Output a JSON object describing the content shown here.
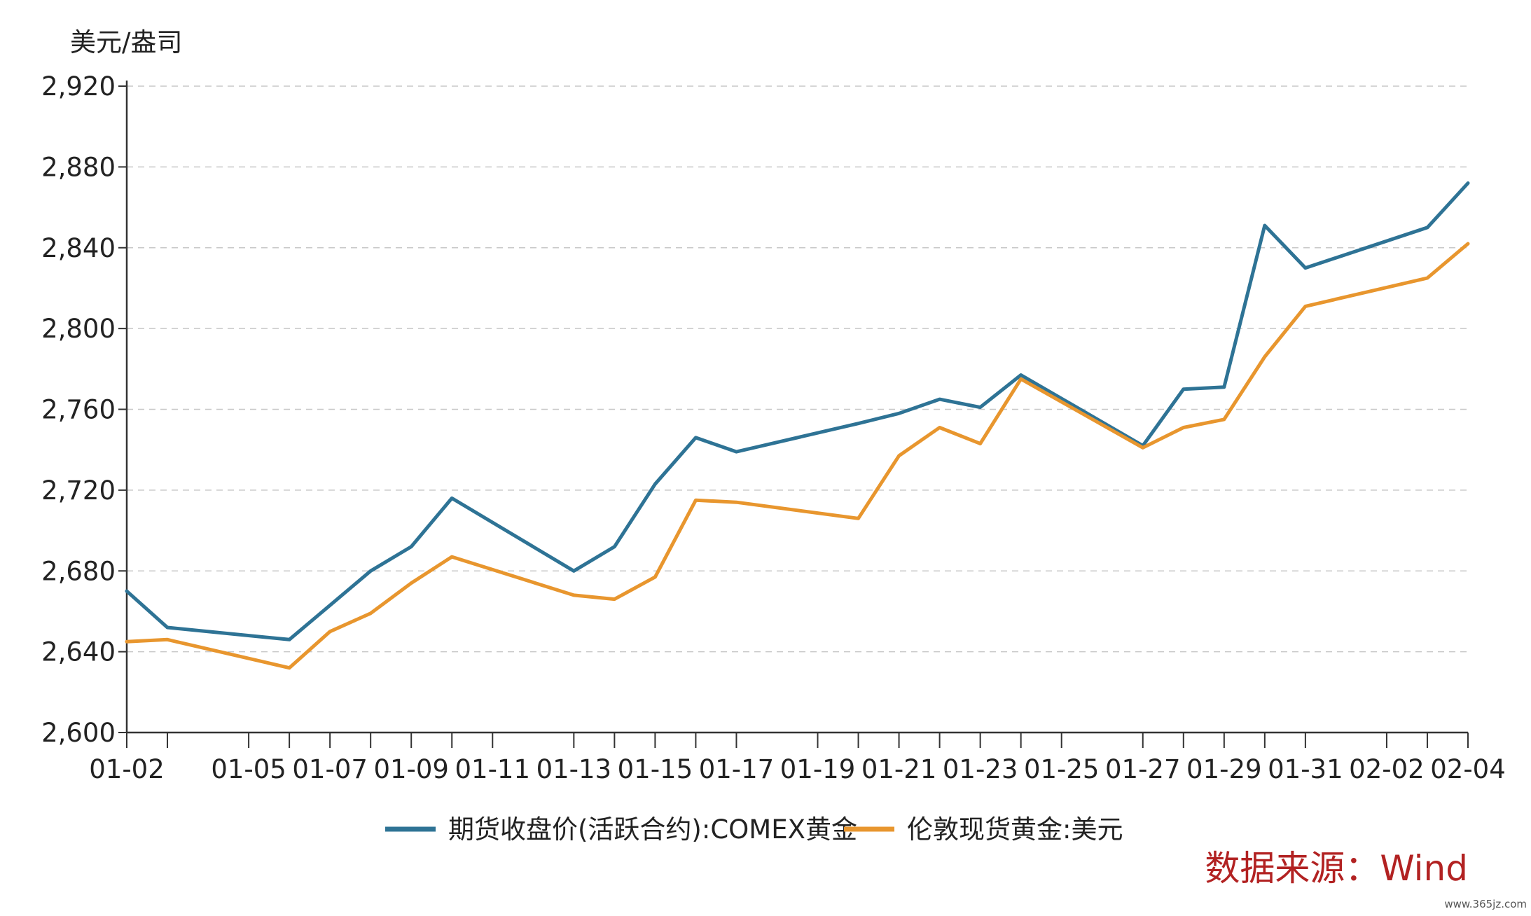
{
  "chart_data": {
    "type": "line",
    "y_unit": "美元/盎司",
    "ylim": [
      2600,
      2920
    ],
    "y_ticks": [
      2600,
      2640,
      2680,
      2720,
      2760,
      2800,
      2840,
      2880,
      2920
    ],
    "y_tick_labels": [
      "2,600",
      "2,640",
      "2,680",
      "2,720",
      "2,760",
      "2,800",
      "2,840",
      "2,880",
      "2,920"
    ],
    "x_dates": [
      "01-02",
      "01-03",
      "01-06",
      "01-07",
      "01-08",
      "01-09",
      "01-10",
      "01-13",
      "01-14",
      "01-15",
      "01-16",
      "01-17",
      "01-20",
      "01-21",
      "01-22",
      "01-23",
      "01-24",
      "01-27",
      "01-28",
      "01-29",
      "01-30",
      "01-31",
      "02-03",
      "02-04"
    ],
    "x_tick_labels": [
      "01-02",
      "01-05",
      "01-07",
      "01-09",
      "01-11",
      "01-13",
      "01-15",
      "01-17",
      "01-19",
      "01-21",
      "01-23",
      "01-25",
      "01-27",
      "01-29",
      "01-31",
      "02-02",
      "02-04"
    ],
    "grid": "horizontal dashed",
    "legend_position": "bottom",
    "series": [
      {
        "name": "期货收盘价(活跃合约):COMEX黄金",
        "color": "#2e7395",
        "values": [
          2670,
          2652,
          2646,
          2663,
          2680,
          2692,
          2716,
          2680,
          2692,
          2723,
          2746,
          2739,
          2753,
          2758,
          2765,
          2761,
          2777,
          2742,
          2770,
          2771,
          2851,
          2830,
          2850,
          2872
        ]
      },
      {
        "name": "伦敦现货黄金:美元",
        "color": "#e8962e",
        "values": [
          2645,
          2646,
          2632,
          2650,
          2659,
          2674,
          2687,
          2668,
          2666,
          2677,
          2715,
          2714,
          2706,
          2737,
          2751,
          2743,
          2775,
          2741,
          2751,
          2755,
          2786,
          2811,
          2825,
          2842
        ]
      }
    ]
  },
  "source": "数据来源：Wind",
  "watermark": "www.365jz.com"
}
